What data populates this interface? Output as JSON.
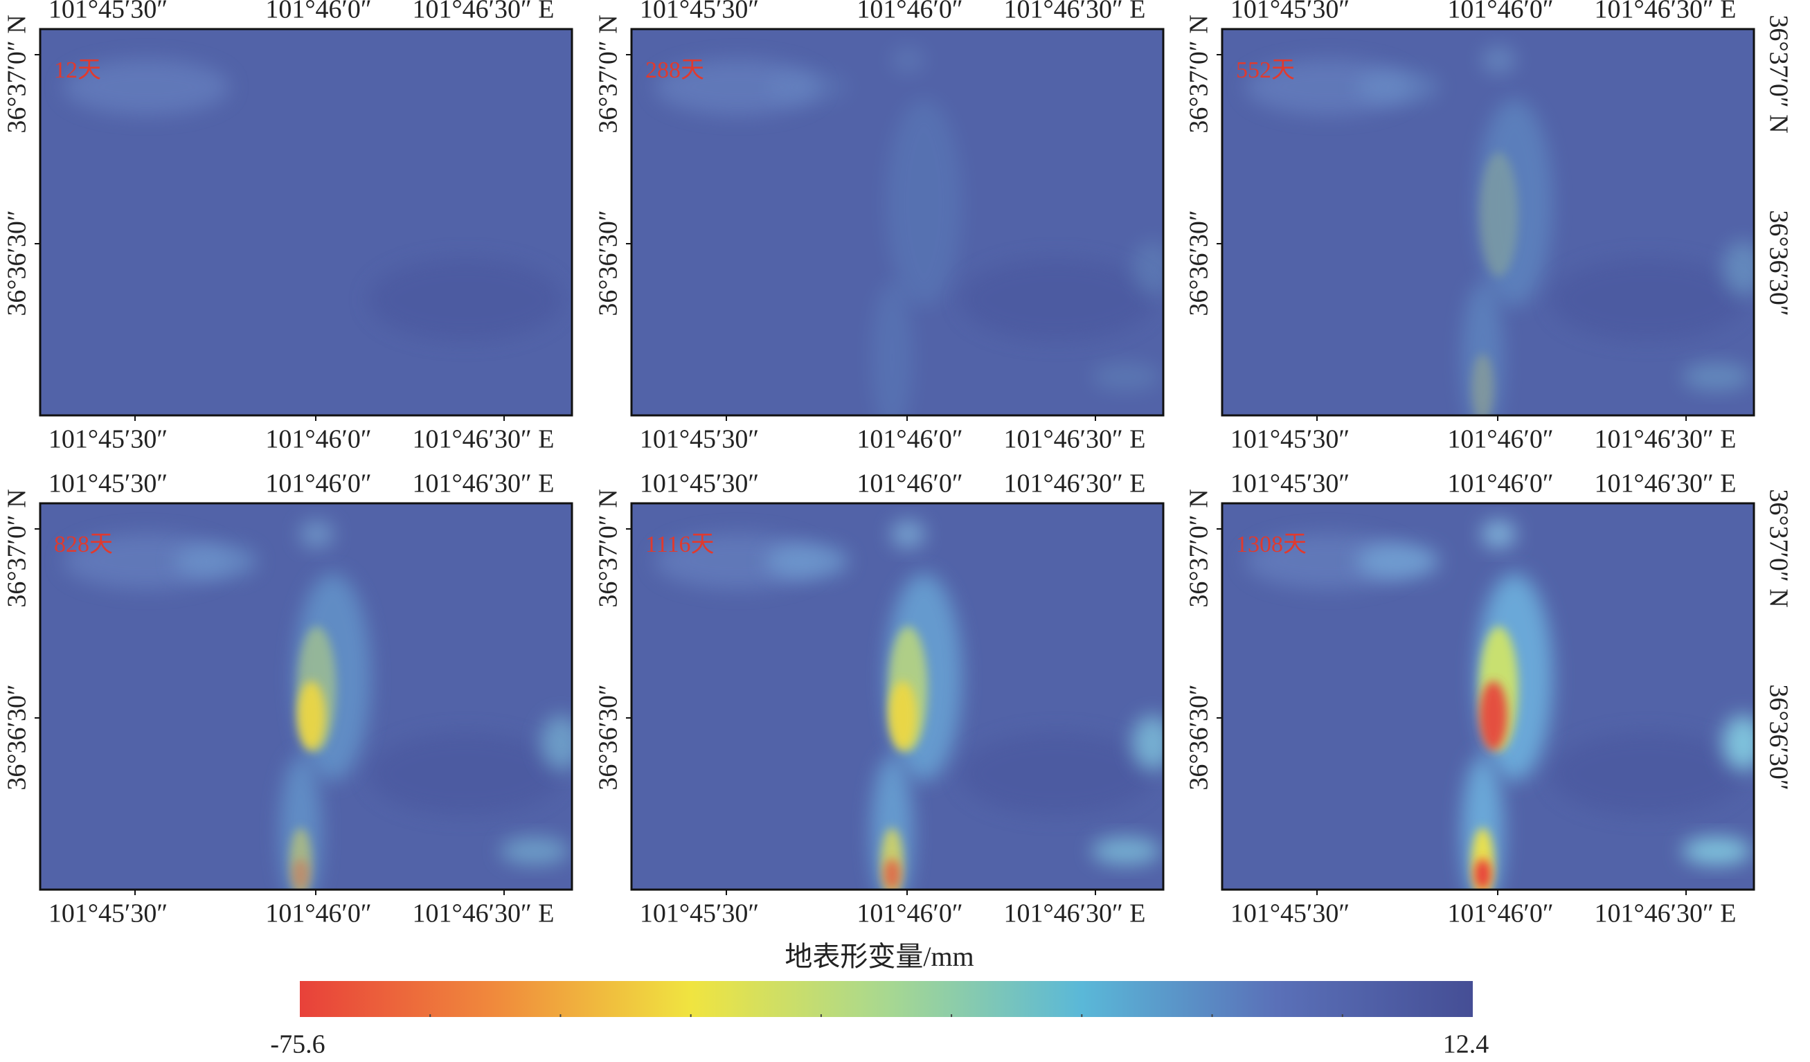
{
  "panels": [
    {
      "label": "12天"
    },
    {
      "label": "288天"
    },
    {
      "label": "552天"
    },
    {
      "label": "828天"
    },
    {
      "label": "1116天"
    },
    {
      "label": "1308天"
    }
  ],
  "x_ticks": [
    "101°45′30″",
    "101°46′0″",
    "101°46′30″ E"
  ],
  "y_ticks": [
    "36°37′0″ N",
    "36°36′30″"
  ],
  "colorbar": {
    "title": "地表形变量/mm",
    "min": -75.6,
    "max": 12.4,
    "colors": [
      "#e8413a",
      "#f08a3c",
      "#f0e440",
      "#a8d890",
      "#5ab8d8",
      "#5a70b8",
      "#454e95"
    ]
  }
}
